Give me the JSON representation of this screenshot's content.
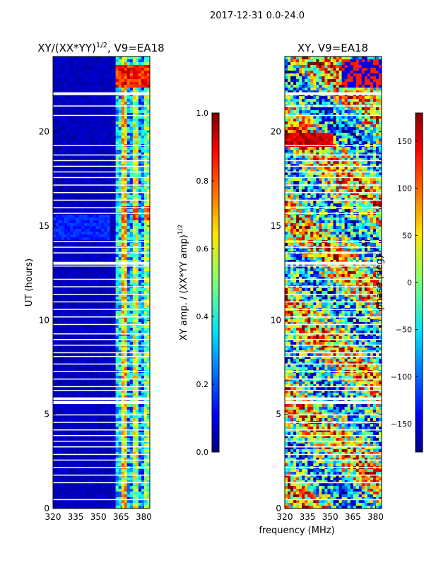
{
  "figure": {
    "suptitle": "2017-12-31 0.0-24.0",
    "common_xlabel": "frequency (MHz)"
  },
  "chart_data": [
    {
      "type": "heatmap",
      "title_prefix": "XY/(XX*YY)",
      "title_exp": "1/2",
      "title_suffix": ", V9=EA18",
      "ylabel": "UT (hours)",
      "xlim": [
        320,
        384
      ],
      "ylim": [
        0,
        24
      ],
      "xticks": [
        "320",
        "335",
        "350",
        "365",
        "380"
      ],
      "yticks": [
        "0",
        "5",
        "10",
        "15",
        "20"
      ],
      "colorbar": {
        "label_main": "XY amp. / (XX*YY amp)",
        "label_exp": "1/2",
        "range": [
          0.0,
          1.0
        ],
        "ticks": [
          "0.0",
          "0.2",
          "0.4",
          "0.6",
          "0.8",
          "1.0"
        ],
        "colormap": "jet"
      }
    },
    {
      "type": "heatmap",
      "title": "XY, V9=EA18",
      "ylabel": "",
      "xlim": [
        320,
        384
      ],
      "ylim": [
        0,
        24
      ],
      "xticks": [
        "320",
        "335",
        "350",
        "365",
        "380"
      ],
      "yticks": [
        "0",
        "5",
        "10",
        "15",
        "20"
      ],
      "colorbar": {
        "label": "phase (deg)",
        "range": [
          -180,
          180
        ],
        "ticks": [
          "-150",
          "-100",
          "-50",
          "0",
          "50",
          "100",
          "150"
        ],
        "colormap": "jet"
      }
    }
  ]
}
